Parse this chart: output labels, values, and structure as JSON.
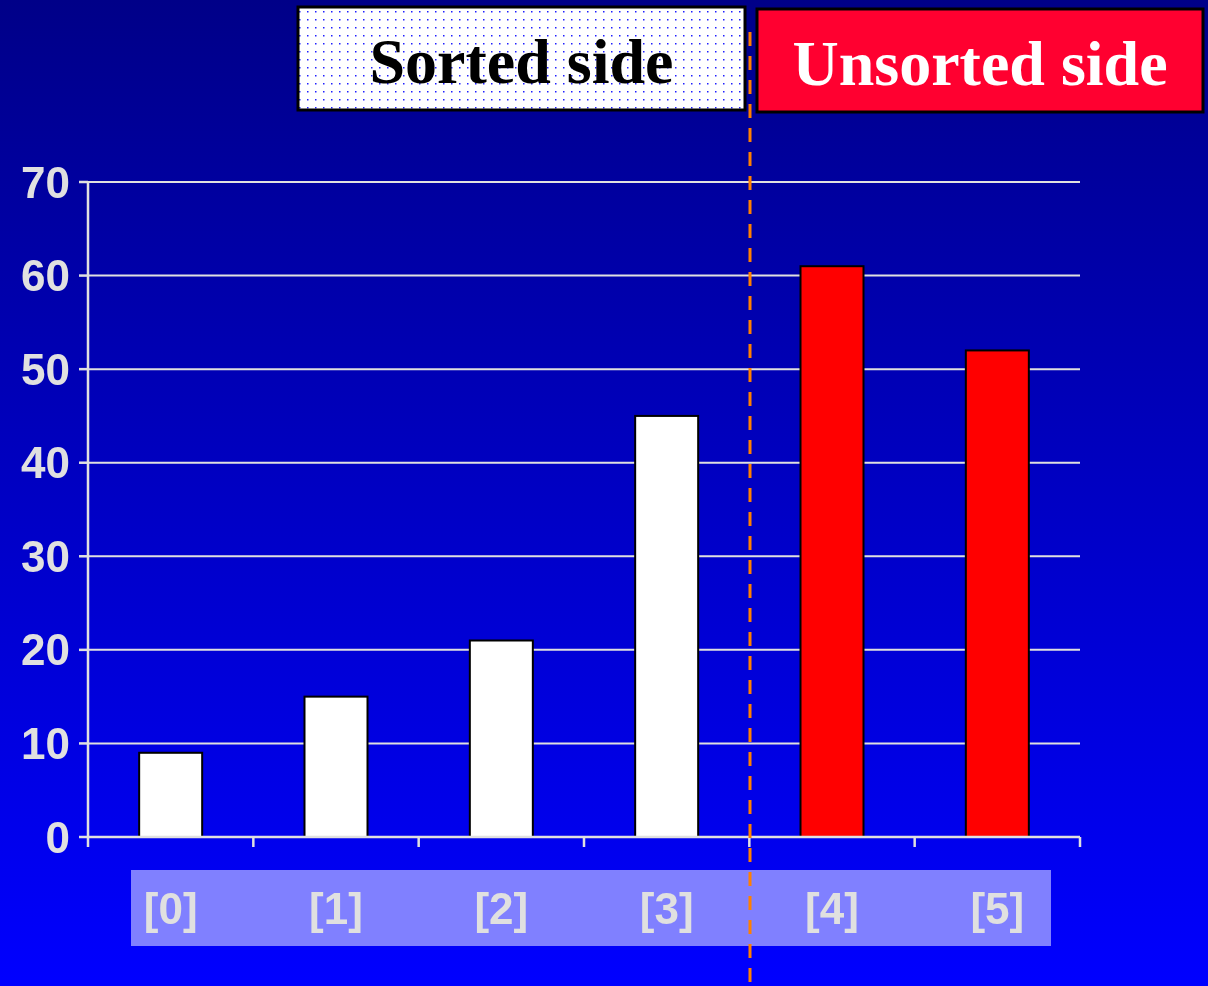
{
  "chart_data": {
    "type": "bar",
    "categories": [
      "[0]",
      "[1]",
      "[2]",
      "[3]",
      "[4]",
      "[5]"
    ],
    "values": [
      9,
      15,
      21,
      45,
      61,
      52
    ],
    "colors": [
      "#ffffff",
      "#ffffff",
      "#ffffff",
      "#ffffff",
      "#ff0000",
      "#ff0000"
    ],
    "ylim": [
      0,
      70
    ],
    "yticks": [
      0,
      10,
      20,
      30,
      40,
      50,
      60,
      70
    ],
    "grid": "y",
    "annotations": [
      "Sorted side",
      "Unsorted side"
    ]
  }
}
